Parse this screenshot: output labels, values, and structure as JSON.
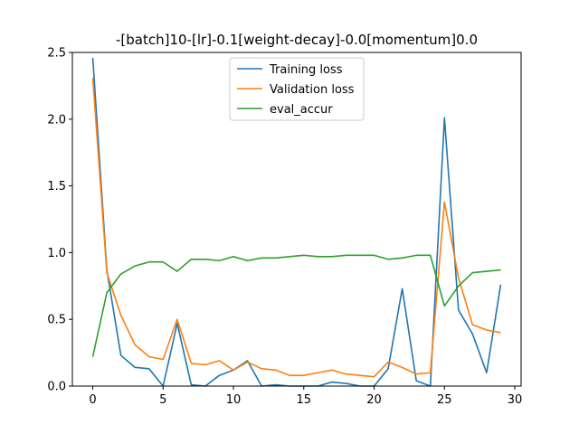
{
  "chart_data": {
    "type": "line",
    "title": "-[batch]10-[lr]-0.1[weight-decay]-0.0[momentum]0.0",
    "xlabel": "",
    "ylabel": "",
    "xlim": [
      -1.45,
      30.45
    ],
    "ylim": [
      0,
      2.5
    ],
    "xticks": [
      0,
      5,
      10,
      15,
      20,
      25,
      30
    ],
    "yticks": [
      0.0,
      0.5,
      1.0,
      1.5,
      2.0,
      2.5
    ],
    "xtick_labels": [
      "0",
      "5",
      "10",
      "15",
      "20",
      "25",
      "30"
    ],
    "ytick_labels": [
      "0.0",
      "0.5",
      "1.0",
      "1.5",
      "2.0",
      "2.5"
    ],
    "grid": false,
    "legend_position": "upper-center",
    "x": [
      0,
      1,
      2,
      3,
      4,
      5,
      6,
      7,
      8,
      9,
      10,
      11,
      12,
      13,
      14,
      15,
      16,
      17,
      18,
      19,
      20,
      21,
      22,
      23,
      24,
      25,
      26,
      27,
      28,
      29
    ],
    "series": [
      {
        "name": "Training loss",
        "color": "#1f77b4",
        "values": [
          2.46,
          0.87,
          0.23,
          0.14,
          0.13,
          0.0,
          0.47,
          0.01,
          0.0,
          0.08,
          0.12,
          0.19,
          0.0,
          0.01,
          0.0,
          0.0,
          0.0,
          0.03,
          0.02,
          0.0,
          0.0,
          0.13,
          0.73,
          0.04,
          0.0,
          2.01,
          0.57,
          0.39,
          0.1,
          0.76
        ]
      },
      {
        "name": "Validation loss",
        "color": "#ff7f0e",
        "values": [
          2.31,
          0.85,
          0.53,
          0.31,
          0.22,
          0.2,
          0.5,
          0.17,
          0.16,
          0.19,
          0.12,
          0.18,
          0.13,
          0.12,
          0.08,
          0.08,
          0.1,
          0.12,
          0.09,
          0.08,
          0.07,
          0.18,
          0.14,
          0.09,
          0.1,
          1.38,
          0.81,
          0.46,
          0.42,
          0.4
        ]
      },
      {
        "name": "eval_accur",
        "color": "#2ca02c",
        "values": [
          0.22,
          0.7,
          0.84,
          0.9,
          0.93,
          0.93,
          0.86,
          0.95,
          0.95,
          0.94,
          0.97,
          0.94,
          0.96,
          0.96,
          0.97,
          0.98,
          0.97,
          0.97,
          0.98,
          0.98,
          0.98,
          0.95,
          0.96,
          0.98,
          0.98,
          0.6,
          0.75,
          0.85,
          0.86,
          0.87
        ]
      }
    ]
  }
}
